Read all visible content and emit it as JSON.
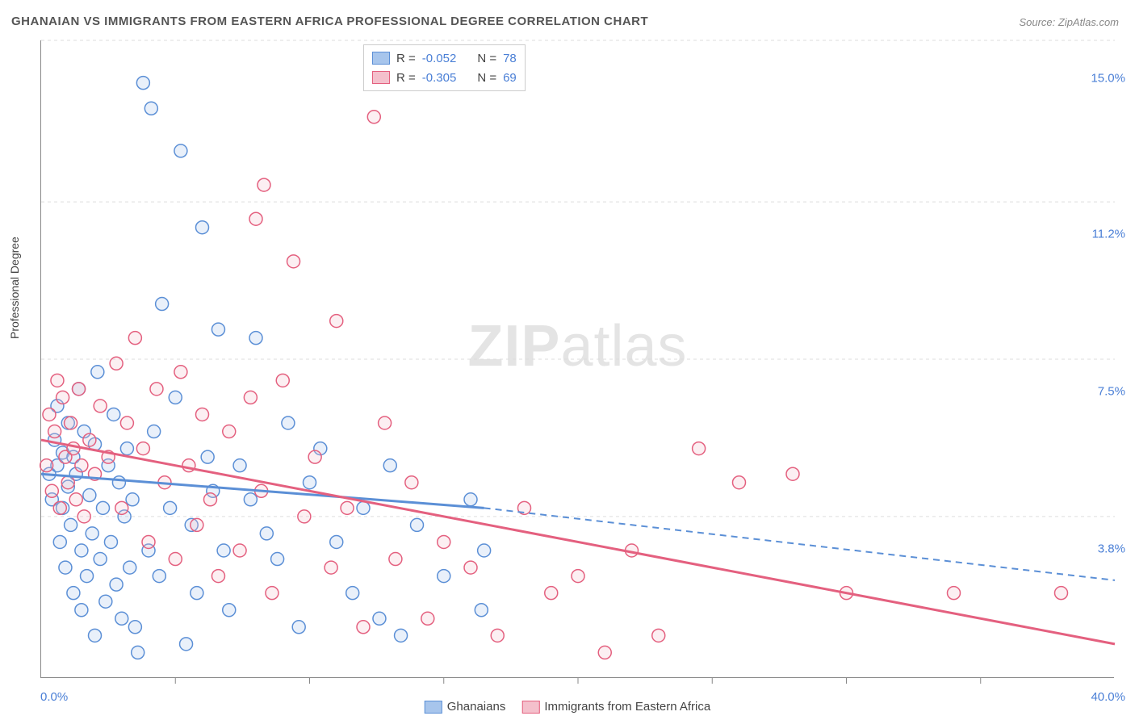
{
  "title": "GHANAIAN VS IMMIGRANTS FROM EASTERN AFRICA PROFESSIONAL DEGREE CORRELATION CHART",
  "source": "Source: ZipAtlas.com",
  "ylabel": "Professional Degree",
  "watermark_bold": "ZIP",
  "watermark_thin": "atlas",
  "chart": {
    "type": "scatter",
    "xlim": [
      0,
      40
    ],
    "ylim": [
      0,
      15
    ],
    "x_tick_labels": {
      "min": "0.0%",
      "max": "40.0%"
    },
    "y_tick_labels": [
      "3.8%",
      "7.5%",
      "11.2%",
      "15.0%"
    ],
    "y_tick_values": [
      3.8,
      7.5,
      11.2,
      15.0
    ],
    "x_ticks_minor_step": 5,
    "background_color": "#ffffff",
    "grid_color": "#dddddd",
    "axis_color": "#888888",
    "marker_radius": 8,
    "marker_stroke_width": 1.5,
    "marker_fill_opacity": 0.25
  },
  "series": [
    {
      "name": "Ghanaians",
      "color_fill": "#a7c5ec",
      "color_stroke": "#5b8fd6",
      "R": "-0.052",
      "N": "78",
      "trend_solid": {
        "x1": 0,
        "y1": 4.8,
        "x2": 16.5,
        "y2": 4.0
      },
      "trend_dashed": {
        "x1": 16.5,
        "y1": 4.0,
        "x2": 40,
        "y2": 2.3
      },
      "points": [
        [
          0.3,
          4.8
        ],
        [
          0.4,
          4.2
        ],
        [
          0.5,
          5.6
        ],
        [
          0.6,
          5.0
        ],
        [
          0.6,
          6.4
        ],
        [
          0.7,
          3.2
        ],
        [
          0.8,
          4.0
        ],
        [
          0.8,
          5.3
        ],
        [
          0.9,
          2.6
        ],
        [
          1.0,
          4.5
        ],
        [
          1.0,
          6.0
        ],
        [
          1.1,
          3.6
        ],
        [
          1.2,
          5.2
        ],
        [
          1.2,
          2.0
        ],
        [
          1.3,
          4.8
        ],
        [
          1.4,
          6.8
        ],
        [
          1.5,
          3.0
        ],
        [
          1.5,
          1.6
        ],
        [
          1.6,
          5.8
        ],
        [
          1.7,
          2.4
        ],
        [
          1.8,
          4.3
        ],
        [
          1.9,
          3.4
        ],
        [
          2.0,
          5.5
        ],
        [
          2.0,
          1.0
        ],
        [
          2.1,
          7.2
        ],
        [
          2.2,
          2.8
        ],
        [
          2.3,
          4.0
        ],
        [
          2.4,
          1.8
        ],
        [
          2.5,
          5.0
        ],
        [
          2.6,
          3.2
        ],
        [
          2.7,
          6.2
        ],
        [
          2.8,
          2.2
        ],
        [
          2.9,
          4.6
        ],
        [
          3.0,
          1.4
        ],
        [
          3.1,
          3.8
        ],
        [
          3.2,
          5.4
        ],
        [
          3.3,
          2.6
        ],
        [
          3.4,
          4.2
        ],
        [
          3.5,
          1.2
        ],
        [
          3.6,
          0.6
        ],
        [
          3.8,
          14.0
        ],
        [
          4.0,
          3.0
        ],
        [
          4.1,
          13.4
        ],
        [
          4.2,
          5.8
        ],
        [
          4.4,
          2.4
        ],
        [
          4.5,
          8.8
        ],
        [
          4.8,
          4.0
        ],
        [
          5.0,
          6.6
        ],
        [
          5.2,
          12.4
        ],
        [
          5.4,
          0.8
        ],
        [
          5.6,
          3.6
        ],
        [
          5.8,
          2.0
        ],
        [
          6.0,
          10.6
        ],
        [
          6.2,
          5.2
        ],
        [
          6.4,
          4.4
        ],
        [
          6.6,
          8.2
        ],
        [
          6.8,
          3.0
        ],
        [
          7.0,
          1.6
        ],
        [
          7.4,
          5.0
        ],
        [
          7.8,
          4.2
        ],
        [
          8.0,
          8.0
        ],
        [
          8.4,
          3.4
        ],
        [
          8.8,
          2.8
        ],
        [
          9.2,
          6.0
        ],
        [
          9.6,
          1.2
        ],
        [
          10.0,
          4.6
        ],
        [
          10.4,
          5.4
        ],
        [
          11.0,
          3.2
        ],
        [
          11.6,
          2.0
        ],
        [
          12.0,
          4.0
        ],
        [
          12.6,
          1.4
        ],
        [
          13.0,
          5.0
        ],
        [
          13.4,
          1.0
        ],
        [
          14.0,
          3.6
        ],
        [
          15.0,
          2.4
        ],
        [
          16.0,
          4.2
        ],
        [
          16.4,
          1.6
        ],
        [
          16.5,
          3.0
        ]
      ]
    },
    {
      "name": "Immigrants from Eastern Africa",
      "color_fill": "#f4c0cc",
      "color_stroke": "#e4607f",
      "R": "-0.305",
      "N": "69",
      "trend_solid": {
        "x1": 0,
        "y1": 5.6,
        "x2": 40,
        "y2": 0.8
      },
      "trend_dashed": null,
      "points": [
        [
          0.2,
          5.0
        ],
        [
          0.3,
          6.2
        ],
        [
          0.4,
          4.4
        ],
        [
          0.5,
          5.8
        ],
        [
          0.6,
          7.0
        ],
        [
          0.7,
          4.0
        ],
        [
          0.8,
          6.6
        ],
        [
          0.9,
          5.2
        ],
        [
          1.0,
          4.6
        ],
        [
          1.1,
          6.0
        ],
        [
          1.2,
          5.4
        ],
        [
          1.3,
          4.2
        ],
        [
          1.4,
          6.8
        ],
        [
          1.5,
          5.0
        ],
        [
          1.6,
          3.8
        ],
        [
          1.8,
          5.6
        ],
        [
          2.0,
          4.8
        ],
        [
          2.2,
          6.4
        ],
        [
          2.5,
          5.2
        ],
        [
          2.8,
          7.4
        ],
        [
          3.0,
          4.0
        ],
        [
          3.2,
          6.0
        ],
        [
          3.5,
          8.0
        ],
        [
          3.8,
          5.4
        ],
        [
          4.0,
          3.2
        ],
        [
          4.3,
          6.8
        ],
        [
          4.6,
          4.6
        ],
        [
          5.0,
          2.8
        ],
        [
          5.2,
          7.2
        ],
        [
          5.5,
          5.0
        ],
        [
          5.8,
          3.6
        ],
        [
          6.0,
          6.2
        ],
        [
          6.3,
          4.2
        ],
        [
          6.6,
          2.4
        ],
        [
          7.0,
          5.8
        ],
        [
          7.4,
          3.0
        ],
        [
          7.8,
          6.6
        ],
        [
          8.0,
          10.8
        ],
        [
          8.2,
          4.4
        ],
        [
          8.3,
          11.6
        ],
        [
          8.6,
          2.0
        ],
        [
          9.0,
          7.0
        ],
        [
          9.4,
          9.8
        ],
        [
          9.8,
          3.8
        ],
        [
          10.2,
          5.2
        ],
        [
          10.8,
          2.6
        ],
        [
          11.0,
          8.4
        ],
        [
          11.4,
          4.0
        ],
        [
          12.0,
          1.2
        ],
        [
          12.4,
          13.2
        ],
        [
          12.8,
          6.0
        ],
        [
          13.2,
          2.8
        ],
        [
          13.8,
          4.6
        ],
        [
          14.4,
          1.4
        ],
        [
          15.0,
          3.2
        ],
        [
          16.0,
          2.6
        ],
        [
          17.0,
          1.0
        ],
        [
          18.0,
          4.0
        ],
        [
          19.0,
          2.0
        ],
        [
          20.0,
          2.4
        ],
        [
          21.0,
          0.6
        ],
        [
          22.0,
          3.0
        ],
        [
          23.0,
          1.0
        ],
        [
          24.5,
          5.4
        ],
        [
          26.0,
          4.6
        ],
        [
          28.0,
          4.8
        ],
        [
          30.0,
          2.0
        ],
        [
          34.0,
          2.0
        ],
        [
          38.0,
          2.0
        ]
      ]
    }
  ],
  "corr_legend": {
    "r_label": "R =",
    "n_label": "N ="
  },
  "bottom_legend": {
    "items": [
      "Ghanaians",
      "Immigrants from Eastern Africa"
    ]
  }
}
